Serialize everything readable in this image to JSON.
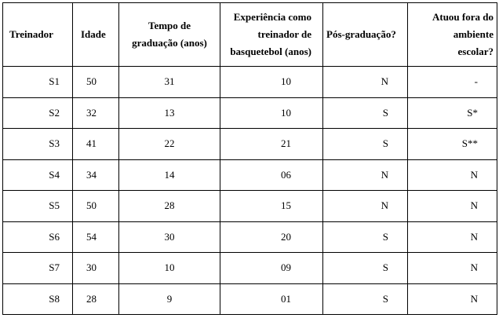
{
  "table": {
    "header": [
      "Treinador",
      "Idade",
      "Tempo de graduação (anos)",
      "Experiência como treinador de basquetebol (anos)",
      "Pós-graduação?",
      "Atuou fora do ambiente escolar?"
    ],
    "rows": [
      [
        "S1",
        "50",
        "31",
        "10",
        "N",
        "-"
      ],
      [
        "S2",
        "32",
        "13",
        "10",
        "S",
        "S*"
      ],
      [
        "S3",
        "41",
        "22",
        "21",
        "S",
        "S**"
      ],
      [
        "S4",
        "34",
        "14",
        "06",
        "N",
        "N"
      ],
      [
        "S5",
        "50",
        "28",
        "15",
        "N",
        "N"
      ],
      [
        "S6",
        "54",
        "30",
        "20",
        "S",
        "N"
      ],
      [
        "S7",
        "30",
        "10",
        "09",
        "S",
        "N"
      ],
      [
        "S8",
        "28",
        "9",
        "01",
        "S",
        "N"
      ]
    ]
  }
}
